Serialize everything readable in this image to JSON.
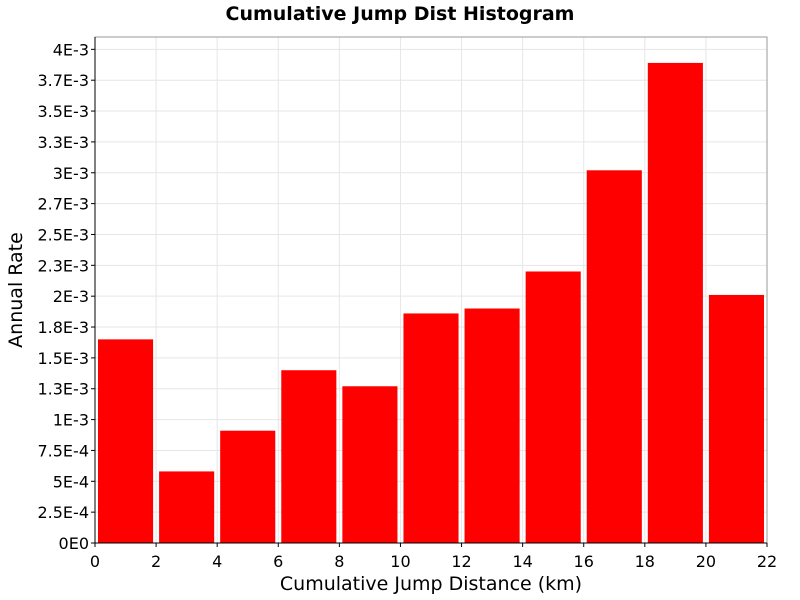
{
  "chart_data": {
    "type": "bar",
    "title": "Cumulative Jump Dist Histogram",
    "xlabel": "Cumulative Jump Distance (km)",
    "ylabel": "Annual Rate",
    "xlim": [
      0,
      22
    ],
    "ylim": [
      0,
      0.0041
    ],
    "bin_width": 2,
    "bins": [
      {
        "x0": 0,
        "x1": 2,
        "value": 0.00165
      },
      {
        "x0": 2,
        "x1": 4,
        "value": 0.00058
      },
      {
        "x0": 4,
        "x1": 6,
        "value": 0.00091
      },
      {
        "x0": 6,
        "x1": 8,
        "value": 0.0014
      },
      {
        "x0": 8,
        "x1": 10,
        "value": 0.00127
      },
      {
        "x0": 10,
        "x1": 12,
        "value": 0.00186
      },
      {
        "x0": 12,
        "x1": 14,
        "value": 0.0019
      },
      {
        "x0": 14,
        "x1": 16,
        "value": 0.0022
      },
      {
        "x0": 16,
        "x1": 18,
        "value": 0.00302
      },
      {
        "x0": 18,
        "x1": 20,
        "value": 0.00389
      },
      {
        "x0": 20,
        "x1": 22,
        "value": 0.00201
      }
    ],
    "x_ticks": [
      {
        "value": 0,
        "label": "0"
      },
      {
        "value": 2,
        "label": "2"
      },
      {
        "value": 4,
        "label": "4"
      },
      {
        "value": 6,
        "label": "6"
      },
      {
        "value": 8,
        "label": "8"
      },
      {
        "value": 10,
        "label": "10"
      },
      {
        "value": 12,
        "label": "12"
      },
      {
        "value": 14,
        "label": "14"
      },
      {
        "value": 16,
        "label": "16"
      },
      {
        "value": 18,
        "label": "18"
      },
      {
        "value": 20,
        "label": "20"
      },
      {
        "value": 22,
        "label": "22"
      }
    ],
    "y_ticks": [
      {
        "value": 0,
        "label": "0E0"
      },
      {
        "value": 0.00025,
        "label": "2.5E-4"
      },
      {
        "value": 0.0005,
        "label": "5E-4"
      },
      {
        "value": 0.00075,
        "label": "7.5E-4"
      },
      {
        "value": 0.001,
        "label": "1E-3"
      },
      {
        "value": 0.00125,
        "label": "1.3E-3"
      },
      {
        "value": 0.0015,
        "label": "1.5E-3"
      },
      {
        "value": 0.00175,
        "label": "1.8E-3"
      },
      {
        "value": 0.002,
        "label": "2E-3"
      },
      {
        "value": 0.00225,
        "label": "2.3E-3"
      },
      {
        "value": 0.0025,
        "label": "2.5E-3"
      },
      {
        "value": 0.00275,
        "label": "2.7E-3"
      },
      {
        "value": 0.003,
        "label": "3E-3"
      },
      {
        "value": 0.00325,
        "label": "3.3E-3"
      },
      {
        "value": 0.0035,
        "label": "3.5E-3"
      },
      {
        "value": 0.00375,
        "label": "3.7E-3"
      },
      {
        "value": 0.004,
        "label": "4E-3"
      }
    ],
    "bar_color": "#ff0000",
    "grid": true,
    "legend": "none"
  }
}
